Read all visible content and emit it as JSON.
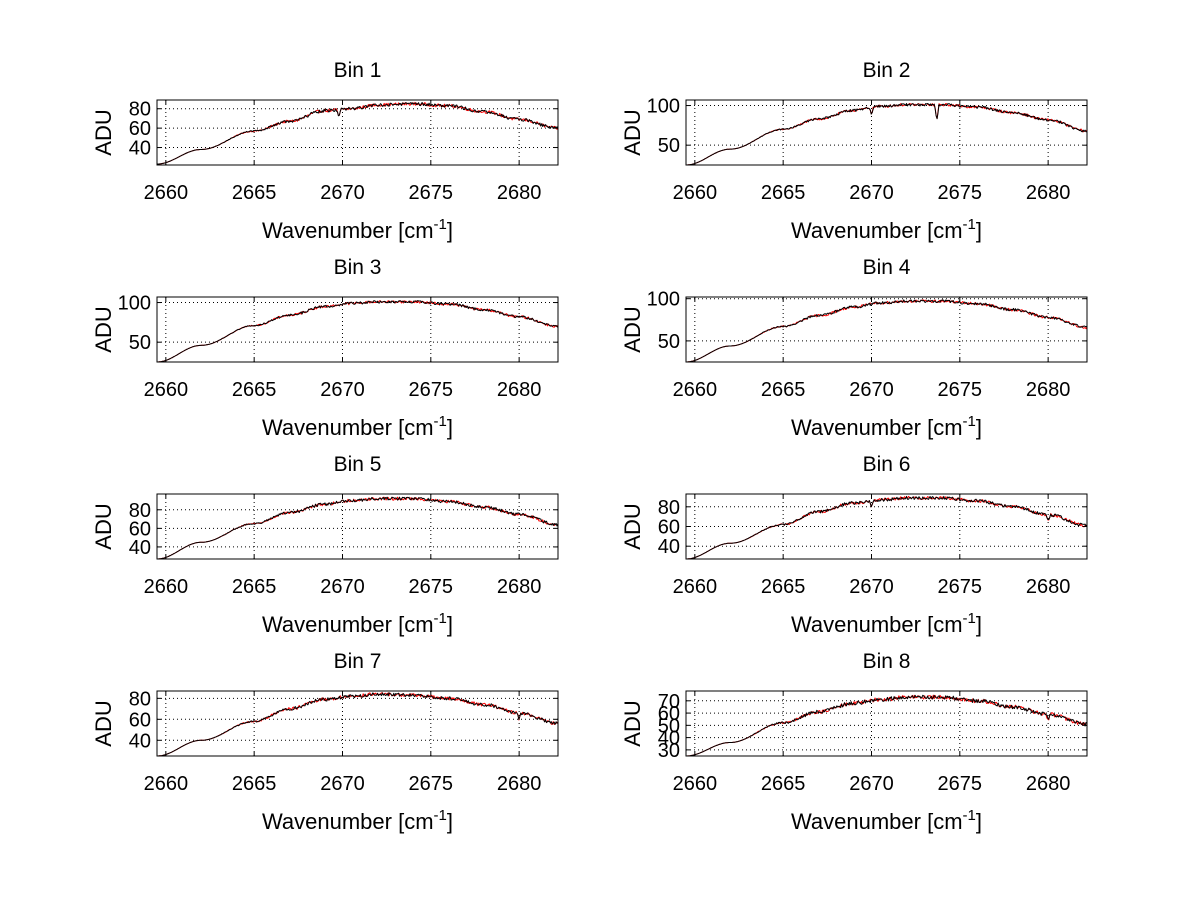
{
  "chart_data": [
    {
      "type": "line",
      "title": "Bin 1",
      "xlabel": "Wavenumber [cm",
      "xlabel_sup": "-1",
      "xlabel_end": "]",
      "ylabel": "ADU",
      "xlim": [
        2659.5,
        2682.2
      ],
      "ylim": [
        22,
        89
      ],
      "xticks": [
        2660,
        2665,
        2670,
        2675,
        2680
      ],
      "yticks": [
        40,
        60,
        80
      ],
      "grid": true,
      "series": [
        {
          "name": "trace-red",
          "color": "#ff0000",
          "x": [
            2659.5,
            2662,
            2665,
            2667,
            2669,
            2670.5,
            2672,
            2674,
            2676,
            2678,
            2680,
            2682.2
          ],
          "y": [
            23,
            38,
            57,
            67,
            78,
            80,
            84,
            85,
            83,
            77,
            69,
            60
          ],
          "dips": [
            [
              2669.8,
              -8
            ]
          ]
        },
        {
          "name": "trace-black",
          "color": "#000000",
          "x": [
            2659.5,
            2662,
            2665,
            2667,
            2669,
            2670.5,
            2672,
            2674,
            2676,
            2678,
            2680,
            2682.2
          ],
          "y": [
            23,
            38,
            57,
            67,
            78,
            80,
            84,
            85,
            83,
            77,
            69,
            60
          ],
          "dips": [
            [
              2669.8,
              -8
            ]
          ]
        }
      ]
    },
    {
      "type": "line",
      "title": "Bin 2",
      "xlabel": "Wavenumber [cm",
      "xlabel_sup": "-1",
      "xlabel_end": "]",
      "ylabel": "ADU",
      "xlim": [
        2659.5,
        2682.2
      ],
      "ylim": [
        25,
        107
      ],
      "xticks": [
        2660,
        2665,
        2670,
        2675,
        2680
      ],
      "yticks": [
        50,
        100
      ],
      "grid": true,
      "series": [
        {
          "name": "trace-red",
          "color": "#ff0000",
          "x": [
            2659.5,
            2662,
            2665,
            2667,
            2669,
            2670.5,
            2672,
            2674,
            2676,
            2678,
            2680,
            2682.2
          ],
          "y": [
            25,
            45,
            70,
            83,
            94,
            99,
            101,
            101,
            98,
            91,
            82,
            68
          ],
          "dips": [
            [
              2673.7,
              -20
            ],
            [
              2670,
              -8
            ]
          ]
        },
        {
          "name": "trace-black",
          "color": "#000000",
          "x": [
            2659.5,
            2662,
            2665,
            2667,
            2669,
            2670.5,
            2672,
            2674,
            2676,
            2678,
            2680,
            2682.2
          ],
          "y": [
            25,
            45,
            70,
            83,
            94,
            99,
            101,
            101,
            98,
            91,
            82,
            68
          ],
          "dips": [
            [
              2673.7,
              -20
            ],
            [
              2670,
              -8
            ]
          ]
        }
      ]
    },
    {
      "type": "line",
      "title": "Bin 3",
      "xlabel": "Wavenumber [cm",
      "xlabel_sup": "-1",
      "xlabel_end": "]",
      "ylabel": "ADU",
      "xlim": [
        2659.5,
        2682.2
      ],
      "ylim": [
        25,
        107
      ],
      "xticks": [
        2660,
        2665,
        2670,
        2675,
        2680
      ],
      "yticks": [
        50,
        100
      ],
      "grid": true,
      "series": [
        {
          "name": "trace-red",
          "color": "#ff0000",
          "x": [
            2659.5,
            2662,
            2665,
            2667,
            2669,
            2670.5,
            2672,
            2674,
            2676,
            2678,
            2680,
            2682.2
          ],
          "y": [
            25,
            46,
            71,
            84,
            95,
            99,
            101,
            101,
            98,
            91,
            82,
            70
          ],
          "dips": []
        },
        {
          "name": "trace-black",
          "color": "#000000",
          "x": [
            2659.5,
            2662,
            2665,
            2667,
            2669,
            2670.5,
            2672,
            2674,
            2676,
            2678,
            2680,
            2682.2
          ],
          "y": [
            25,
            46,
            71,
            84,
            95,
            99,
            101,
            101,
            98,
            91,
            82,
            70
          ],
          "dips": []
        }
      ]
    },
    {
      "type": "line",
      "title": "Bin 4",
      "xlabel": "Wavenumber [cm",
      "xlabel_sup": "-1",
      "xlabel_end": "]",
      "ylabel": "ADU",
      "xlim": [
        2659.5,
        2682.2
      ],
      "ylim": [
        25,
        102
      ],
      "xticks": [
        2660,
        2665,
        2670,
        2675,
        2680
      ],
      "yticks": [
        50,
        100
      ],
      "grid": true,
      "series": [
        {
          "name": "trace-red",
          "color": "#ff0000",
          "x": [
            2659.5,
            2662,
            2665,
            2667,
            2669,
            2670.5,
            2672,
            2674,
            2676,
            2678,
            2680,
            2682.2
          ],
          "y": [
            25,
            44,
            67,
            80,
            90,
            95,
            97,
            97,
            94,
            87,
            78,
            66
          ],
          "dips": []
        },
        {
          "name": "trace-black",
          "color": "#000000",
          "x": [
            2659.5,
            2662,
            2665,
            2667,
            2669,
            2670.5,
            2672,
            2674,
            2676,
            2678,
            2680,
            2682.2
          ],
          "y": [
            25,
            44,
            67,
            80,
            90,
            95,
            97,
            97,
            94,
            87,
            78,
            66
          ],
          "dips": []
        }
      ]
    },
    {
      "type": "line",
      "title": "Bin 5",
      "xlabel": "Wavenumber [cm",
      "xlabel_sup": "-1",
      "xlabel_end": "]",
      "ylabel": "ADU",
      "xlim": [
        2659.5,
        2682.2
      ],
      "ylim": [
        27,
        97
      ],
      "xticks": [
        2660,
        2665,
        2670,
        2675,
        2680
      ],
      "yticks": [
        40,
        60,
        80
      ],
      "grid": true,
      "series": [
        {
          "name": "trace-red",
          "color": "#ff0000",
          "x": [
            2659.5,
            2662,
            2665,
            2667,
            2669,
            2670.5,
            2672,
            2674,
            2676,
            2678,
            2680,
            2682.2
          ],
          "y": [
            27,
            45,
            65,
            77,
            86,
            90,
            92,
            92,
            89,
            83,
            75,
            64
          ],
          "dips": []
        },
        {
          "name": "trace-black",
          "color": "#000000",
          "x": [
            2659.5,
            2662,
            2665,
            2667,
            2669,
            2670.5,
            2672,
            2674,
            2676,
            2678,
            2680,
            2682.2
          ],
          "y": [
            27,
            45,
            65,
            77,
            86,
            90,
            92,
            92,
            89,
            83,
            75,
            64
          ],
          "dips": []
        }
      ]
    },
    {
      "type": "line",
      "title": "Bin 6",
      "xlabel": "Wavenumber [cm",
      "xlabel_sup": "-1",
      "xlabel_end": "]",
      "ylabel": "ADU",
      "xlim": [
        2659.5,
        2682.2
      ],
      "ylim": [
        27,
        93
      ],
      "xticks": [
        2660,
        2665,
        2670,
        2675,
        2680
      ],
      "yticks": [
        40,
        60,
        80
      ],
      "grid": true,
      "series": [
        {
          "name": "trace-red",
          "color": "#ff0000",
          "x": [
            2659.5,
            2662,
            2665,
            2667,
            2669,
            2670.5,
            2672,
            2674,
            2676,
            2678,
            2680,
            2682.2
          ],
          "y": [
            27,
            43,
            62,
            75,
            84,
            87,
            89,
            89,
            86,
            80,
            72,
            61
          ],
          "dips": [
            [
              2670,
              -6
            ],
            [
              2680,
              -6
            ]
          ]
        },
        {
          "name": "trace-black",
          "color": "#000000",
          "x": [
            2659.5,
            2662,
            2665,
            2667,
            2669,
            2670.5,
            2672,
            2674,
            2676,
            2678,
            2680,
            2682.2
          ],
          "y": [
            27,
            43,
            62,
            75,
            84,
            87,
            89,
            89,
            86,
            80,
            72,
            61
          ],
          "dips": [
            [
              2670,
              -6
            ],
            [
              2680,
              -6
            ]
          ]
        }
      ]
    },
    {
      "type": "line",
      "title": "Bin 7",
      "xlabel": "Wavenumber [cm",
      "xlabel_sup": "-1",
      "xlabel_end": "]",
      "ylabel": "ADU",
      "xlim": [
        2659.5,
        2682.2
      ],
      "ylim": [
        25,
        87
      ],
      "xticks": [
        2660,
        2665,
        2670,
        2675,
        2680
      ],
      "yticks": [
        40,
        60,
        80
      ],
      "grid": true,
      "series": [
        {
          "name": "trace-red",
          "color": "#ff0000",
          "x": [
            2659.5,
            2662,
            2665,
            2667,
            2669,
            2670.5,
            2672,
            2674,
            2676,
            2678,
            2680,
            2682.2
          ],
          "y": [
            25,
            40,
            58,
            70,
            79,
            82,
            84,
            83,
            80,
            74,
            66,
            56
          ],
          "dips": [
            [
              2680,
              -6
            ]
          ]
        },
        {
          "name": "trace-black",
          "color": "#000000",
          "x": [
            2659.5,
            2662,
            2665,
            2667,
            2669,
            2670.5,
            2672,
            2674,
            2676,
            2678,
            2680,
            2682.2
          ],
          "y": [
            25,
            40,
            58,
            70,
            79,
            82,
            84,
            83,
            80,
            74,
            66,
            56
          ],
          "dips": [
            [
              2680,
              -6
            ]
          ]
        }
      ]
    },
    {
      "type": "line",
      "title": "Bin 8",
      "xlabel": "Wavenumber [cm",
      "xlabel_sup": "-1",
      "xlabel_end": "]",
      "ylabel": "ADU",
      "xlim": [
        2659.5,
        2682.2
      ],
      "ylim": [
        25,
        78
      ],
      "xticks": [
        2660,
        2665,
        2670,
        2675,
        2680
      ],
      "yticks": [
        30,
        40,
        50,
        60,
        70
      ],
      "grid": true,
      "series": [
        {
          "name": "trace-red",
          "color": "#ff0000",
          "x": [
            2659.5,
            2662,
            2665,
            2667,
            2669,
            2670.5,
            2672,
            2674,
            2676,
            2678,
            2680,
            2682.2
          ],
          "y": [
            25,
            36,
            52,
            61,
            68,
            71,
            73,
            73,
            70,
            65,
            59,
            51
          ],
          "dips": [
            [
              2680,
              -5
            ]
          ]
        },
        {
          "name": "trace-black",
          "color": "#000000",
          "x": [
            2659.5,
            2662,
            2665,
            2667,
            2669,
            2670.5,
            2672,
            2674,
            2676,
            2678,
            2680,
            2682.2
          ],
          "y": [
            25,
            36,
            52,
            61,
            68,
            71,
            73,
            73,
            70,
            65,
            59,
            51
          ],
          "dips": [
            [
              2680,
              -5
            ]
          ]
        }
      ]
    }
  ]
}
